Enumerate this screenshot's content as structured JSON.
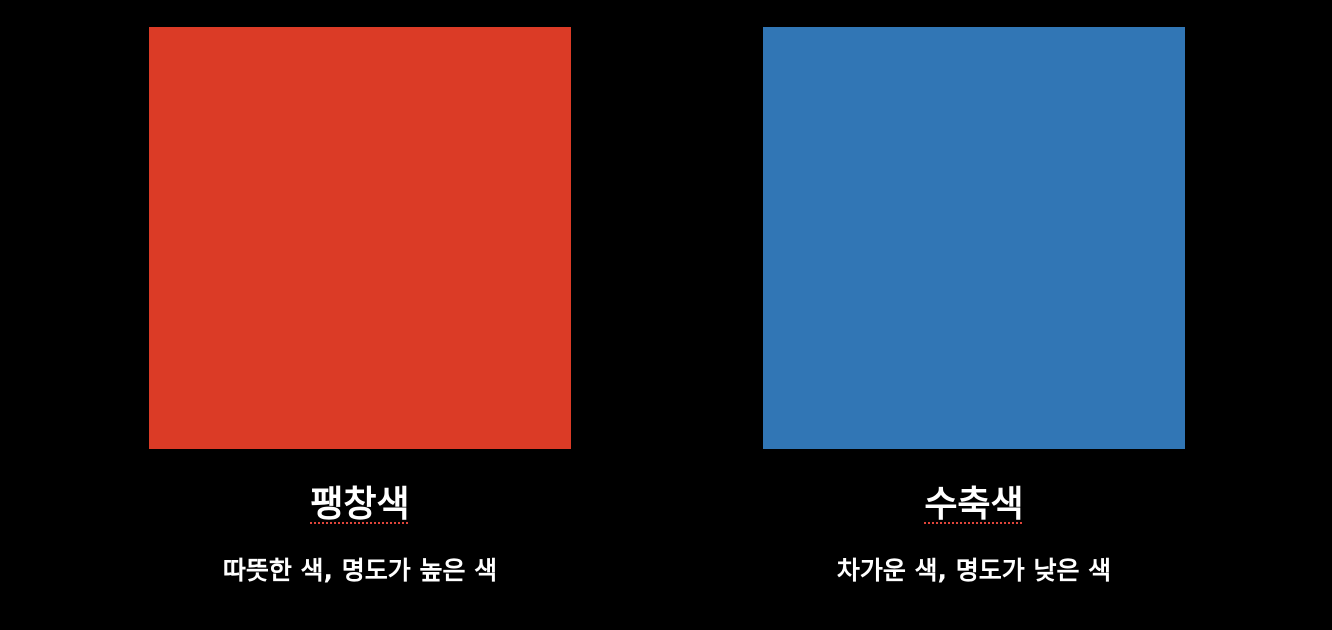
{
  "panels": [
    {
      "title": "팽창색",
      "description": "따뜻한 색, 명도가 높은 색",
      "color": "#db3b26"
    },
    {
      "title": "수축색",
      "description": "차가운 색, 명도가 낮은 색",
      "color": "#3176b5"
    }
  ]
}
